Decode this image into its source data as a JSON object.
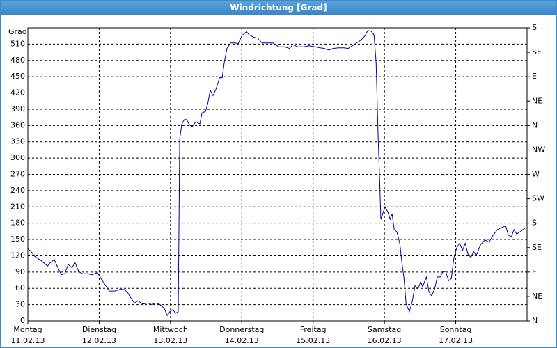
{
  "title": "Windrichtung [Grad]",
  "chart_data": {
    "type": "line",
    "y_label": "Grad",
    "xlim": [
      0,
      168
    ],
    "xticks": [
      {
        "value": 0,
        "label": "Montag",
        "sublabel": "11.02.13"
      },
      {
        "value": 24,
        "label": "Dienstag",
        "sublabel": "12.02.13"
      },
      {
        "value": 48,
        "label": "Mittwoch",
        "sublabel": "13.02.13"
      },
      {
        "value": 72,
        "label": "Donnerstag",
        "sublabel": "14.02.13"
      },
      {
        "value": 96,
        "label": "Freitag",
        "sublabel": "15.02.13"
      },
      {
        "value": 120,
        "label": "Samstag",
        "sublabel": "16.02.13"
      },
      {
        "value": 144,
        "label": "Sonntag",
        "sublabel": "17.02.13"
      }
    ],
    "ylim": [
      0,
      540
    ],
    "yticks": [
      0,
      30,
      60,
      90,
      120,
      150,
      180,
      210,
      240,
      270,
      300,
      330,
      360,
      390,
      420,
      450,
      480,
      510
    ],
    "y2lim": [
      0,
      540
    ],
    "y2ticks": [
      {
        "value": 0,
        "label": "N"
      },
      {
        "value": 45,
        "label": "NE"
      },
      {
        "value": 90,
        "label": "E"
      },
      {
        "value": 135,
        "label": "SE"
      },
      {
        "value": 180,
        "label": "S"
      },
      {
        "value": 225,
        "label": "SW"
      },
      {
        "value": 270,
        "label": "W"
      },
      {
        "value": 315,
        "label": "NW"
      },
      {
        "value": 360,
        "label": "N"
      },
      {
        "value": 405,
        "label": "NE"
      },
      {
        "value": 450,
        "label": "E"
      },
      {
        "value": 495,
        "label": "SE"
      },
      {
        "value": 540,
        "label": "S"
      }
    ],
    "grid": true,
    "series": [
      {
        "color": "#0000a0",
        "x": [
          0,
          1.2,
          2.3,
          4.7,
          6.6,
          7.5,
          8.9,
          10.1,
          11.3,
          12.4,
          13.6,
          14.8,
          15.9,
          17.1,
          18.3,
          19.9,
          21.6,
          23.4,
          24.6,
          25.8,
          27.4,
          29.3,
          30.9,
          32.3,
          33.5,
          34.7,
          35.9,
          37.0,
          38.7,
          40.3,
          41.7,
          43.1,
          44.5,
          45.9,
          46.9,
          47.8,
          48.8,
          49.7,
          50.6,
          51.1,
          51.8,
          52.7,
          53.4,
          54.4,
          55.3,
          56.5,
          57.9,
          58.6,
          59.8,
          60.5,
          61.4,
          62.3,
          63.3,
          64.5,
          65.4,
          66.1,
          67.0,
          68.2,
          69.6,
          70.8,
          72.0,
          72.9,
          73.6,
          74.5,
          75.9,
          77.3,
          78.8,
          80.6,
          82.5,
          84.4,
          86.3,
          88.1,
          89.1,
          90.9,
          92.8,
          94.7,
          96.6,
          98.4,
          99.8,
          101.3,
          102.7,
          104.5,
          106.4,
          107.8,
          109.2,
          110.6,
          112.0,
          113.4,
          114.4,
          115.5,
          116.5,
          117.2,
          117.9,
          118.4,
          118.8,
          120.2,
          121.2,
          121.9,
          122.6,
          123.3,
          124.2,
          125.2,
          125.9,
          126.6,
          127.3,
          128.4,
          129.4,
          130.3,
          131.3,
          132.2,
          132.9,
          134.1,
          135.0,
          135.9,
          136.9,
          137.8,
          138.8,
          139.7,
          140.6,
          141.6,
          142.5,
          143.4,
          144.4,
          145.3,
          146.3,
          147.2,
          148.1,
          149.1,
          150.0,
          150.9,
          152.3,
          153.8,
          155.2,
          156.6,
          158.0,
          159.4,
          160.8,
          161.7,
          162.7,
          163.6,
          164.5,
          165.9,
          167.3
        ],
        "values": [
          133,
          127,
          119,
          110,
          101,
          107,
          113,
          98,
          85,
          87,
          104,
          98,
          107,
          91,
          87,
          87,
          85,
          89,
          78,
          68,
          55,
          55,
          58,
          58,
          53,
          42,
          33,
          37,
          31,
          33,
          30,
          33,
          30,
          23,
          10,
          17,
          21,
          14,
          17,
          335,
          363,
          371,
          371,
          361,
          358,
          367,
          363,
          383,
          386,
          399,
          425,
          415,
          427,
          448,
          448,
          476,
          502,
          512,
          512,
          511,
          525,
          530,
          533,
          527,
          523,
          521,
          512,
          512,
          512,
          505,
          505,
          502,
          509,
          505,
          505,
          507,
          505,
          503,
          502,
          499,
          502,
          503,
          503,
          502,
          507,
          512,
          517,
          525,
          535,
          534,
          527,
          476,
          335,
          258,
          187,
          210,
          200,
          187,
          197,
          168,
          164,
          142,
          107,
          78,
          31,
          17,
          37,
          65,
          59,
          72,
          63,
          81,
          53,
          46,
          59,
          81,
          81,
          91,
          91,
          74,
          78,
          117,
          136,
          143,
          130,
          143,
          123,
          117,
          128,
          120,
          140,
          149,
          145,
          158,
          168,
          172,
          175,
          158,
          155,
          168,
          160,
          165,
          171
        ]
      }
    ]
  }
}
